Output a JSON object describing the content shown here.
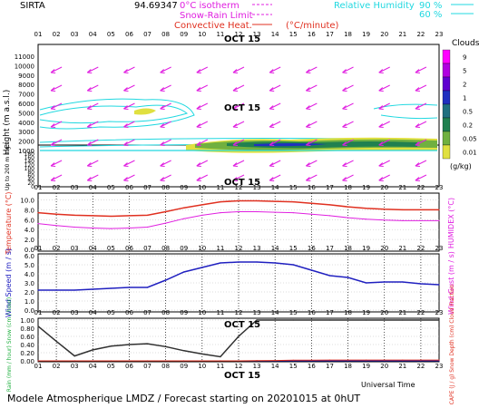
{
  "header": {
    "site": "SIRTA",
    "code": "94.69347",
    "zero_isotherm": "0°C isotherm",
    "snow_rain_limit": "Snow-Rain Limit",
    "convective_heat": "Convective Heat.",
    "convective_unit": "(°C/minute)",
    "rh_label": "Relative Humidity",
    "rh_90": "90 %",
    "rh_60": "60 %"
  },
  "hours": [
    "01",
    "02",
    "03",
    "04",
    "05",
    "06",
    "07",
    "08",
    "09",
    "10",
    "11",
    "12",
    "13",
    "14",
    "15",
    "16",
    "17",
    "18",
    "19",
    "20",
    "21",
    "22",
    "23"
  ],
  "date_label": "OCT 15",
  "footer": {
    "universal_time": "Universal Time",
    "model_text": "Modele Atmospherique LMDZ / Forecast starting on 20201015 at 0hUT"
  },
  "colors": {
    "magenta": "#e020e0",
    "cyan": "#20d8e0",
    "red": "#e03020",
    "blue": "#2020c0",
    "black": "#000000"
  },
  "chart_data": [
    {
      "type": "heatmap",
      "name": "Clouds and wind profile",
      "ylabel": "Height (m a.s.l.)",
      "lower_ylabel": "Up to 200 m a.g.l.",
      "yticks": [
        1000,
        2000,
        3000,
        4000,
        5000,
        6000,
        7000,
        8000,
        9000,
        10000,
        11000
      ],
      "lower_yticks": [
        0,
        20,
        40,
        60,
        80,
        100,
        120,
        140,
        160,
        180
      ],
      "legend_title": "Clouds",
      "legend_unit": "(g/kg)",
      "legend_ticks": [
        "9",
        "5",
        "2",
        "1",
        "0.5",
        "0.2",
        "0.05",
        "0.01"
      ],
      "legend_colors": [
        "#ff00ff",
        "#b000e0",
        "#6000d0",
        "#2030c0",
        "#207080",
        "#208050",
        "#70b040",
        "#e0e040"
      ]
    },
    {
      "type": "line",
      "name": "Temperature",
      "x": [
        1,
        2,
        3,
        4,
        5,
        6,
        7,
        8,
        9,
        10,
        11,
        12,
        13,
        14,
        15,
        16,
        17,
        18,
        19,
        20,
        21,
        22,
        23
      ],
      "left_ylabel": "Temperature (°C)",
      "right_ylabel": "HUMIDEX (°C)",
      "yticks": [
        "0.0",
        "2.0",
        "4.0",
        "6.0",
        "8.0",
        "10.0"
      ],
      "ylim": [
        0,
        11
      ],
      "series": [
        {
          "name": "Temperature",
          "values": [
            7.4,
            7.1,
            6.9,
            6.8,
            6.7,
            6.8,
            6.9,
            7.6,
            8.4,
            9.0,
            9.6,
            9.8,
            9.8,
            9.7,
            9.6,
            9.3,
            9.0,
            8.6,
            8.3,
            8.1,
            8.0,
            8.0,
            8.0
          ]
        },
        {
          "name": "HUMIDEX",
          "values": [
            5.2,
            4.8,
            4.5,
            4.3,
            4.2,
            4.3,
            4.5,
            5.3,
            6.2,
            6.9,
            7.4,
            7.6,
            7.6,
            7.5,
            7.4,
            7.1,
            6.8,
            6.4,
            6.1,
            5.9,
            5.8,
            5.8,
            5.8
          ]
        }
      ]
    },
    {
      "type": "line",
      "name": "Wind Speed",
      "x": [
        1,
        2,
        3,
        4,
        5,
        6,
        7,
        8,
        9,
        10,
        11,
        12,
        13,
        14,
        15,
        16,
        17,
        18,
        19,
        20,
        21,
        22,
        23
      ],
      "left_ylabel": "Wind Speed (m / s)",
      "right_ylabel": "Wind Gust (m / s)",
      "yticks": [
        "0.0",
        "1.0",
        "2.0",
        "3.0",
        "4.0",
        "5.0",
        "6.0"
      ],
      "ylim": [
        0,
        6
      ],
      "series": [
        {
          "name": "Wind Speed",
          "values": [
            2.2,
            2.2,
            2.2,
            2.3,
            2.4,
            2.5,
            2.5,
            3.3,
            4.2,
            4.7,
            5.2,
            5.3,
            5.3,
            5.2,
            5.0,
            4.4,
            3.8,
            3.6,
            3.0,
            3.1,
            3.1,
            2.9,
            2.8
          ]
        }
      ]
    },
    {
      "type": "line",
      "name": "Precipitation",
      "x": [
        1,
        2,
        3,
        4,
        5,
        6,
        7,
        8,
        9,
        10,
        11,
        12,
        13,
        14,
        15,
        16,
        17,
        18,
        19,
        20,
        21,
        22,
        23
      ],
      "left_ylabel": "Rain (mm / hour) Snow (cm / hour)",
      "right_ylabel": "CAPE (J / g) Snow Depth (cm) Cloud Fraction",
      "yticks": [
        "0.00",
        "0.20",
        "0.40",
        "0.60",
        "0.80",
        "1.00"
      ],
      "ylim": [
        0,
        1.0
      ],
      "series": [
        {
          "name": "Rain",
          "values": [
            0.85,
            0.48,
            0.12,
            0.27,
            0.36,
            0.4,
            0.42,
            0.35,
            0.25,
            0.17,
            0.1,
            0.6,
            1.0,
            1.0,
            1.0,
            1.0,
            1.0,
            1.0,
            1.0,
            1.0,
            1.0,
            1.0,
            1.0
          ]
        },
        {
          "name": "Snow",
          "values": [
            0,
            0,
            0,
            0,
            0,
            0,
            0,
            0,
            0,
            0,
            0,
            0,
            0,
            0,
            0,
            0,
            0,
            0,
            0,
            0,
            0,
            0,
            0
          ]
        },
        {
          "name": "CAPE",
          "values": [
            0,
            0,
            0,
            0,
            0,
            0,
            0,
            0,
            0,
            0,
            0,
            0,
            0.005,
            0.01,
            0.015,
            0.018,
            0.02,
            0.02,
            0.02,
            0.02,
            0.02,
            0.02,
            0.02
          ]
        }
      ]
    }
  ]
}
